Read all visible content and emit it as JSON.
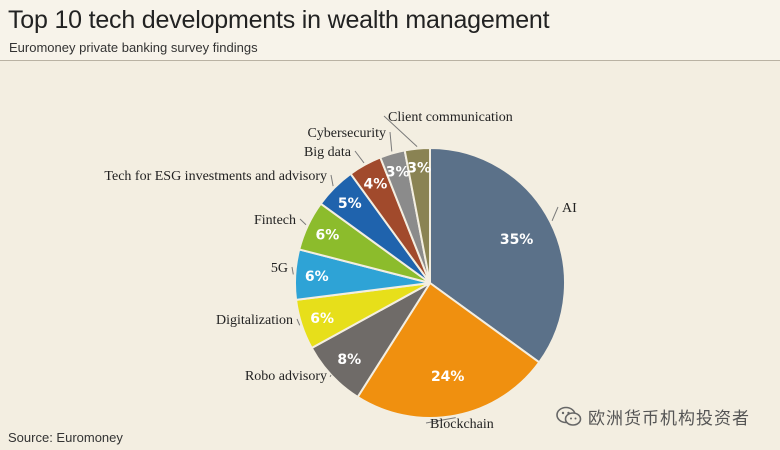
{
  "header": {
    "title": "Top 10 tech developments in wealth management",
    "subtitle": "Euromoney private banking survey findings"
  },
  "footer": {
    "source": "Source: Euromoney"
  },
  "watermark": {
    "text": "欧洲货币机构投资者",
    "icon": "wechat-icon"
  },
  "chart_data": {
    "type": "pie",
    "title": "Top 10 tech developments in wealth management",
    "subtitle": "Euromoney private banking survey findings",
    "slices": [
      {
        "label": "AI",
        "value": 35,
        "display": "35%",
        "color": "#5b7189"
      },
      {
        "label": "Blockchain",
        "value": 24,
        "display": "24%",
        "color": "#f0900f"
      },
      {
        "label": "Robo advisory",
        "value": 8,
        "display": "8%",
        "color": "#6f6b68"
      },
      {
        "label": "Digitalization",
        "value": 6,
        "display": "6%",
        "color": "#e7df1a"
      },
      {
        "label": "5G",
        "value": 6,
        "display": "6%",
        "color": "#2ea3d6"
      },
      {
        "label": "Fintech",
        "value": 6,
        "display": "6%",
        "color": "#8cbc2c"
      },
      {
        "label": "Tech for ESG investments and advisory",
        "value": 5,
        "display": "5%",
        "color": "#1f63ad"
      },
      {
        "label": "Big data",
        "value": 4,
        "display": "4%",
        "color": "#a14a2c"
      },
      {
        "label": "Cybersecurity",
        "value": 3,
        "display": "3%",
        "color": "#8b8b8b"
      },
      {
        "label": "Client communication",
        "value": 3,
        "display": "3%",
        "color": "#8a8353"
      }
    ],
    "legend": "none",
    "labels": "outside with leader lines"
  }
}
